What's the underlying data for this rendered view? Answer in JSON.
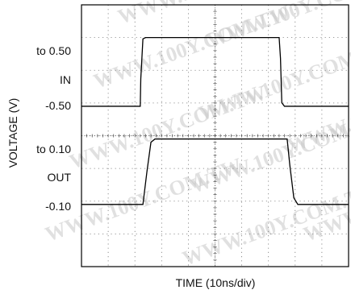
{
  "chart_data": {
    "type": "line",
    "title": "",
    "xlabel": "TIME (10ns/div)",
    "ylabel": "VOLTAGE (V)",
    "x_unit": "div",
    "x_range_div": [
      0,
      10
    ],
    "grid": true,
    "grid_divisions": {
      "x": 10,
      "y": 8
    },
    "watermark": "WWW.100Y.COM.TW",
    "series": [
      {
        "label_text": "IN",
        "upper_level_label": "to 0.50",
        "lower_level_label": "-0.50",
        "points": [
          [
            0.0,
            -0.5
          ],
          [
            2.2,
            -0.5
          ],
          [
            2.22,
            -0.1
          ],
          [
            2.3,
            0.48
          ],
          [
            2.4,
            0.5
          ],
          [
            7.4,
            0.5
          ],
          [
            7.45,
            0.2
          ],
          [
            7.5,
            -0.45
          ],
          [
            7.6,
            -0.5
          ],
          [
            10.0,
            -0.5
          ]
        ],
        "values": [
          -0.5,
          0.5,
          -0.5
        ]
      },
      {
        "label_text": "OUT",
        "upper_level_label": "to 0.10",
        "lower_level_label": "-0.10",
        "points": [
          [
            0.0,
            -0.1
          ],
          [
            2.3,
            -0.1
          ],
          [
            2.45,
            0.0
          ],
          [
            2.6,
            0.09
          ],
          [
            2.75,
            0.1
          ],
          [
            7.7,
            0.1
          ],
          [
            7.8,
            0.02
          ],
          [
            7.95,
            -0.08
          ],
          [
            8.1,
            -0.1
          ],
          [
            10.0,
            -0.1
          ]
        ],
        "values": [
          -0.1,
          0.1,
          -0.1
        ]
      }
    ]
  }
}
